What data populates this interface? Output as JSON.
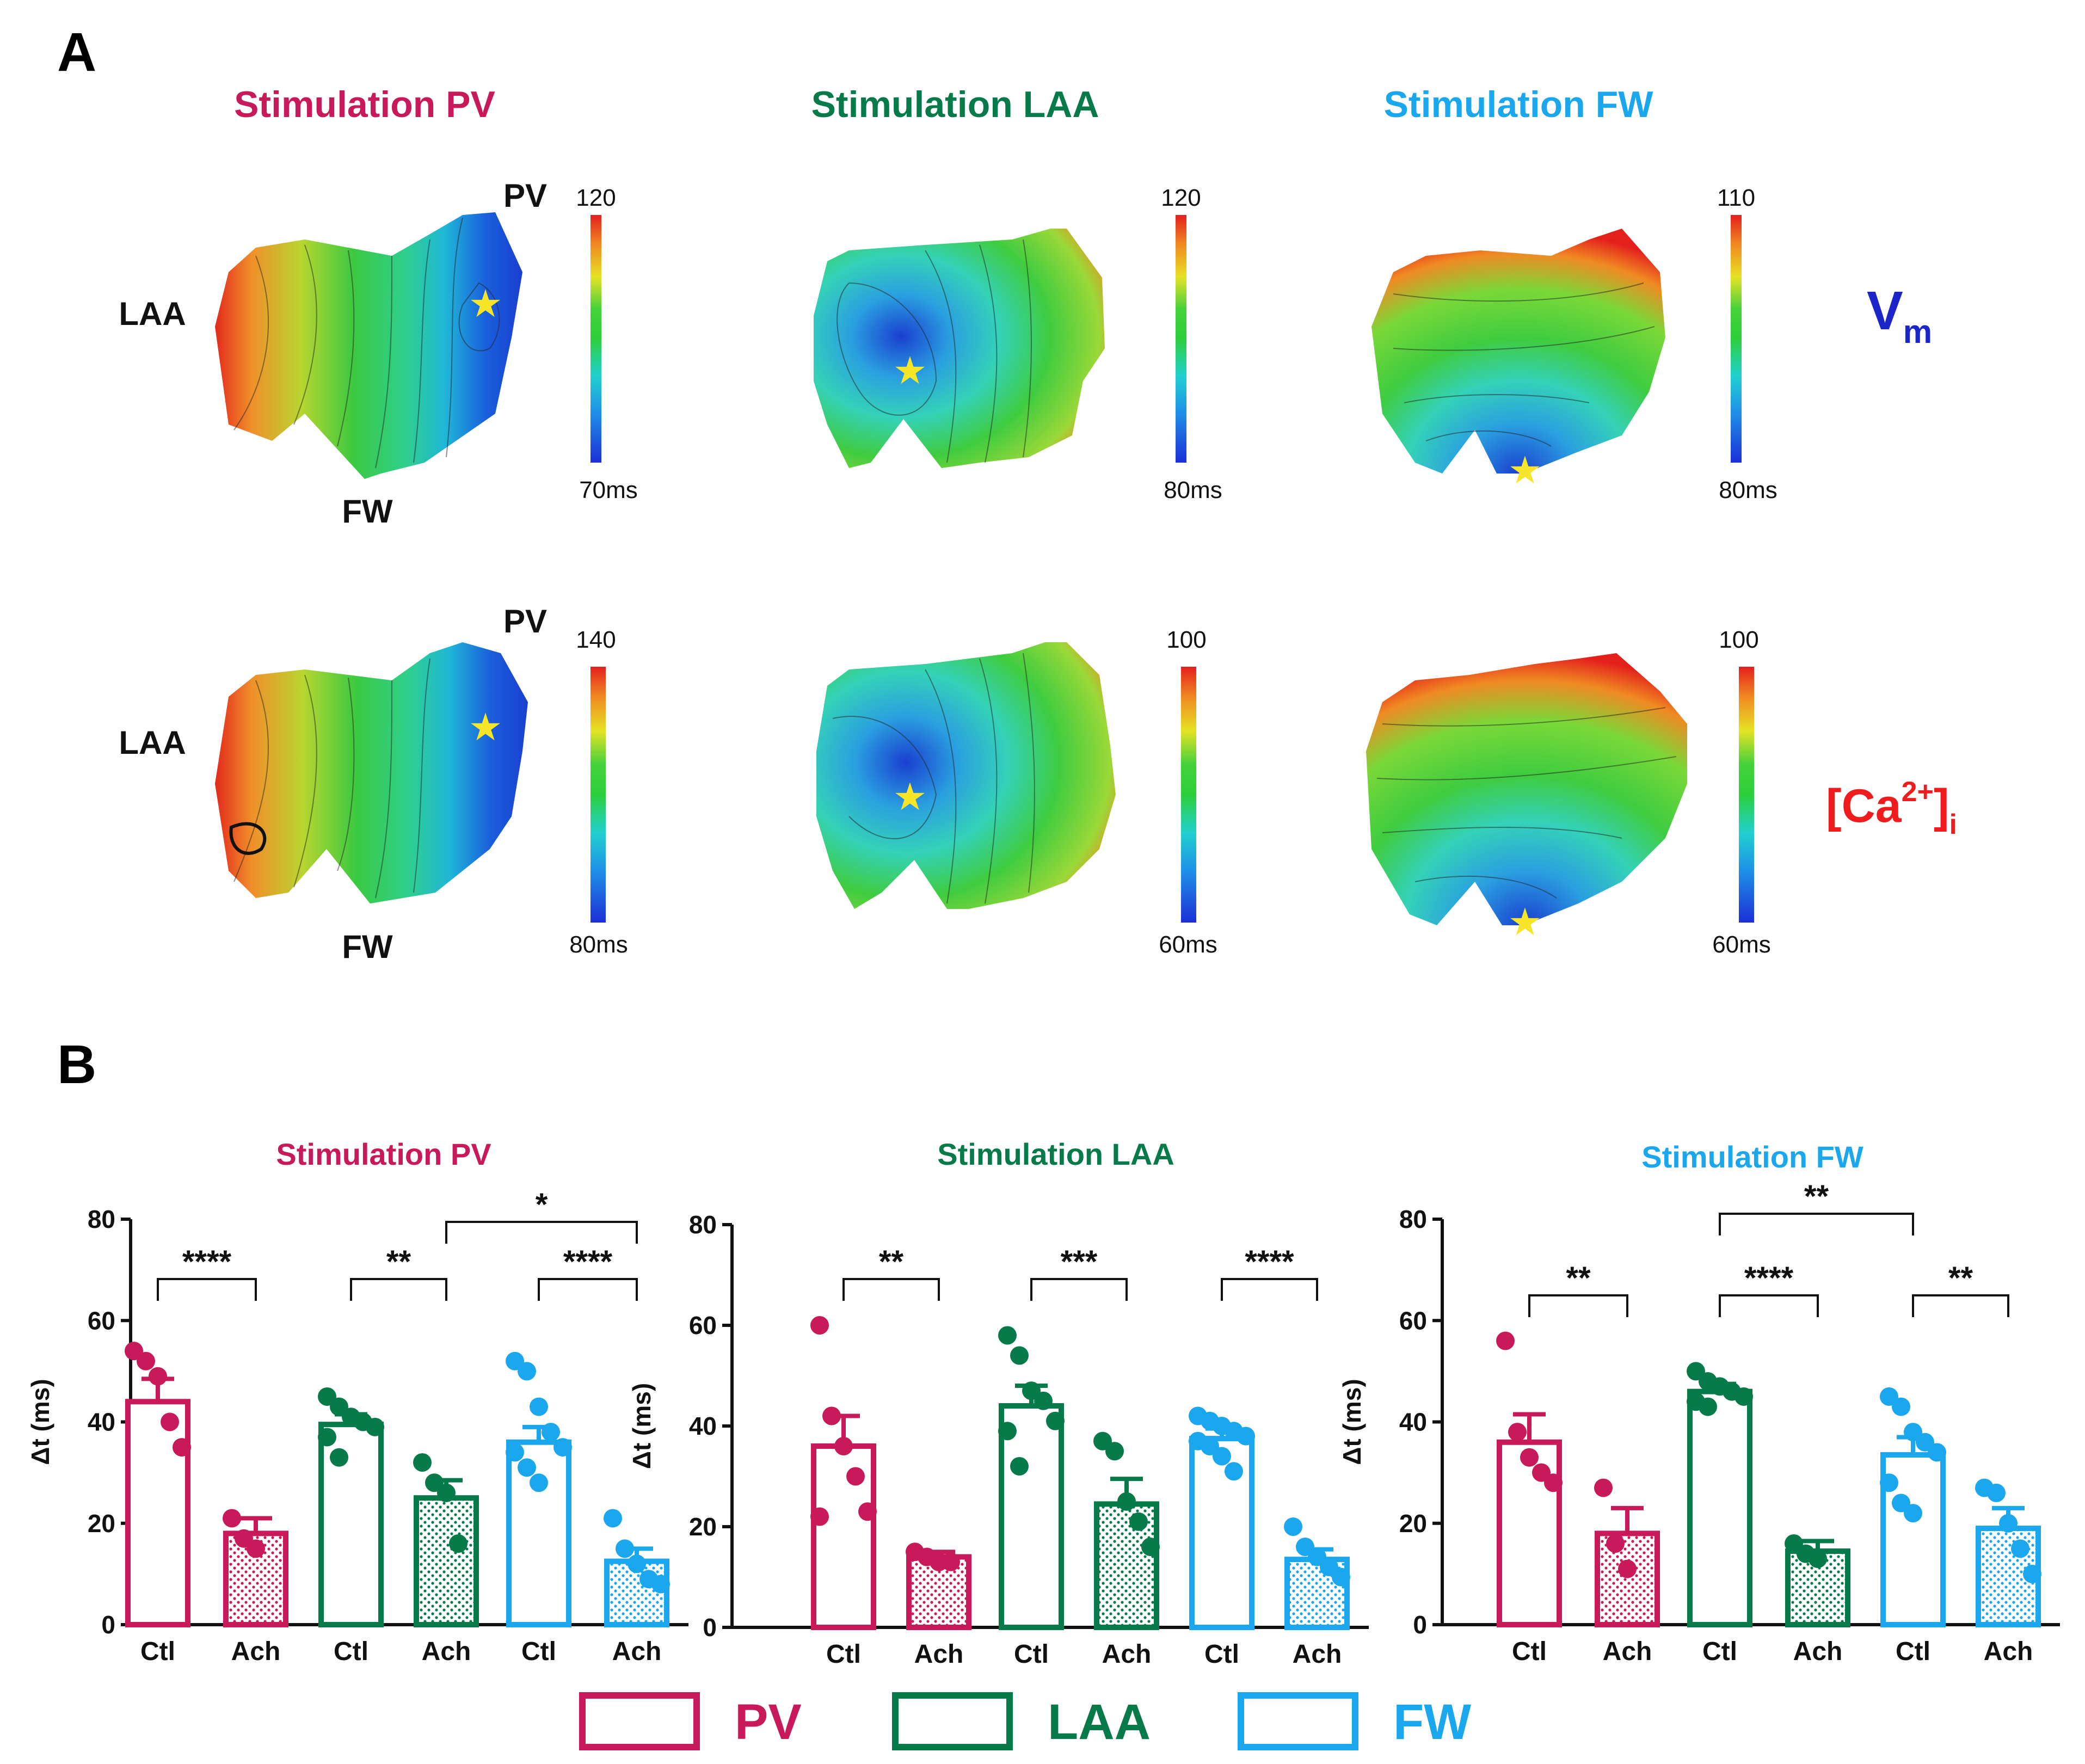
{
  "panel_a": {
    "letter": "A",
    "titles": [
      {
        "text": "Stimulation PV",
        "color": "#c8195a"
      },
      {
        "text": "Stimulation LAA",
        "color": "#077a4a"
      },
      {
        "text": "Stimulation FW",
        "color": "#1aa7ee"
      }
    ],
    "region_labels": {
      "pv": "PV",
      "laa": "LAA",
      "fw": "FW"
    },
    "row_labels": {
      "vm_main": "V",
      "vm_sub": "m",
      "ca_open": "[Ca",
      "ca_sup": "2+",
      "ca_close": "]",
      "ca_sub": "i"
    },
    "colorbars": [
      {
        "top": "120",
        "bottom": "70ms"
      },
      {
        "top": "120",
        "bottom": "80ms"
      },
      {
        "top": "110",
        "bottom": "80ms"
      },
      {
        "top": "140",
        "bottom": "80ms"
      },
      {
        "top": "100",
        "bottom": "60ms"
      },
      {
        "top": "100",
        "bottom": "60ms"
      }
    ]
  },
  "panel_b": {
    "letter": "B",
    "legend": [
      {
        "label": "PV",
        "color": "#c8195a"
      },
      {
        "label": "LAA",
        "color": "#077a4a"
      },
      {
        "label": "FW",
        "color": "#1aa7ee"
      }
    ]
  },
  "chart_data": [
    {
      "type": "bar",
      "title": "Stimulation PV",
      "title_color": "#c8195a",
      "ylabel": "Δt (ms)",
      "ylim": [
        0,
        80
      ],
      "yticks": [
        0,
        20,
        40,
        60,
        80
      ],
      "categories": [
        "Ctl",
        "Ach",
        "Ctl",
        "Ach",
        "Ctl",
        "Ach"
      ],
      "groups": [
        "PV",
        "PV",
        "LAA",
        "LAA",
        "FW",
        "FW"
      ],
      "values": [
        44,
        18,
        39.5,
        25,
        36,
        12.5
      ],
      "errors": [
        4.5,
        3,
        2,
        3.5,
        3,
        2.5
      ],
      "points": [
        [
          54,
          52,
          49,
          40,
          35
        ],
        [
          21,
          17,
          15
        ],
        [
          45,
          43,
          41,
          40,
          39,
          37,
          33
        ],
        [
          32,
          28,
          26,
          16
        ],
        [
          52,
          50,
          43,
          38,
          35,
          34,
          31,
          28
        ],
        [
          21,
          15,
          12,
          9,
          8
        ]
      ],
      "significance": [
        {
          "from": 0,
          "to": 1,
          "label": "****"
        },
        {
          "from": 2,
          "to": 3,
          "label": "**"
        },
        {
          "from": 4,
          "to": 5,
          "label": "****"
        },
        {
          "from": 3,
          "to": 5,
          "label": "*"
        }
      ]
    },
    {
      "type": "bar",
      "title": "Stimulation LAA",
      "title_color": "#077a4a",
      "ylabel": "Δt (ms)",
      "ylim": [
        0,
        80
      ],
      "yticks": [
        0,
        20,
        40,
        60,
        80
      ],
      "categories": [
        "Ctl",
        "Ach",
        "Ctl",
        "Ach",
        "Ctl",
        "Ach"
      ],
      "groups": [
        "PV",
        "PV",
        "LAA",
        "LAA",
        "FW",
        "FW"
      ],
      "values": [
        36,
        14,
        44,
        24.5,
        37.5,
        13.5
      ],
      "errors": [
        6,
        1,
        4,
        5,
        2,
        2
      ],
      "points": [
        [
          60,
          42,
          36,
          30,
          23,
          22
        ],
        [
          15,
          14,
          13,
          13
        ],
        [
          58,
          54,
          47,
          45,
          41,
          39,
          32
        ],
        [
          37,
          35,
          25,
          21,
          16
        ],
        [
          42,
          41,
          40,
          39,
          38,
          37,
          36,
          34,
          31
        ],
        [
          20,
          16,
          14,
          12,
          10
        ]
      ],
      "significance": [
        {
          "from": 0,
          "to": 1,
          "label": "**"
        },
        {
          "from": 2,
          "to": 3,
          "label": "***"
        },
        {
          "from": 4,
          "to": 5,
          "label": "****"
        }
      ]
    },
    {
      "type": "bar",
      "title": "Stimulation FW",
      "title_color": "#1aa7ee",
      "ylabel": "Δt (ms)",
      "ylim": [
        0,
        80
      ],
      "yticks": [
        0,
        20,
        40,
        60,
        80
      ],
      "categories": [
        "Ctl",
        "Ach",
        "Ctl",
        "Ach",
        "Ctl",
        "Ach"
      ],
      "groups": [
        "PV",
        "PV",
        "LAA",
        "LAA",
        "FW",
        "FW"
      ],
      "values": [
        36,
        18,
        46,
        14.5,
        33.5,
        19
      ],
      "errors": [
        5.5,
        5,
        1.5,
        2,
        3.5,
        4
      ],
      "points": [
        [
          56,
          38,
          33,
          30,
          28
        ],
        [
          27,
          16,
          11
        ],
        [
          50,
          48,
          47,
          46,
          45,
          44,
          43
        ],
        [
          16,
          14,
          13
        ],
        [
          45,
          43,
          38,
          36,
          34,
          28,
          24,
          22
        ],
        [
          27,
          26,
          20,
          15,
          10
        ]
      ],
      "significance": [
        {
          "from": 0,
          "to": 1,
          "label": "**"
        },
        {
          "from": 2,
          "to": 3,
          "label": "****"
        },
        {
          "from": 4,
          "to": 5,
          "label": "**"
        },
        {
          "from": 2,
          "to": 4,
          "label": "**"
        }
      ]
    }
  ]
}
